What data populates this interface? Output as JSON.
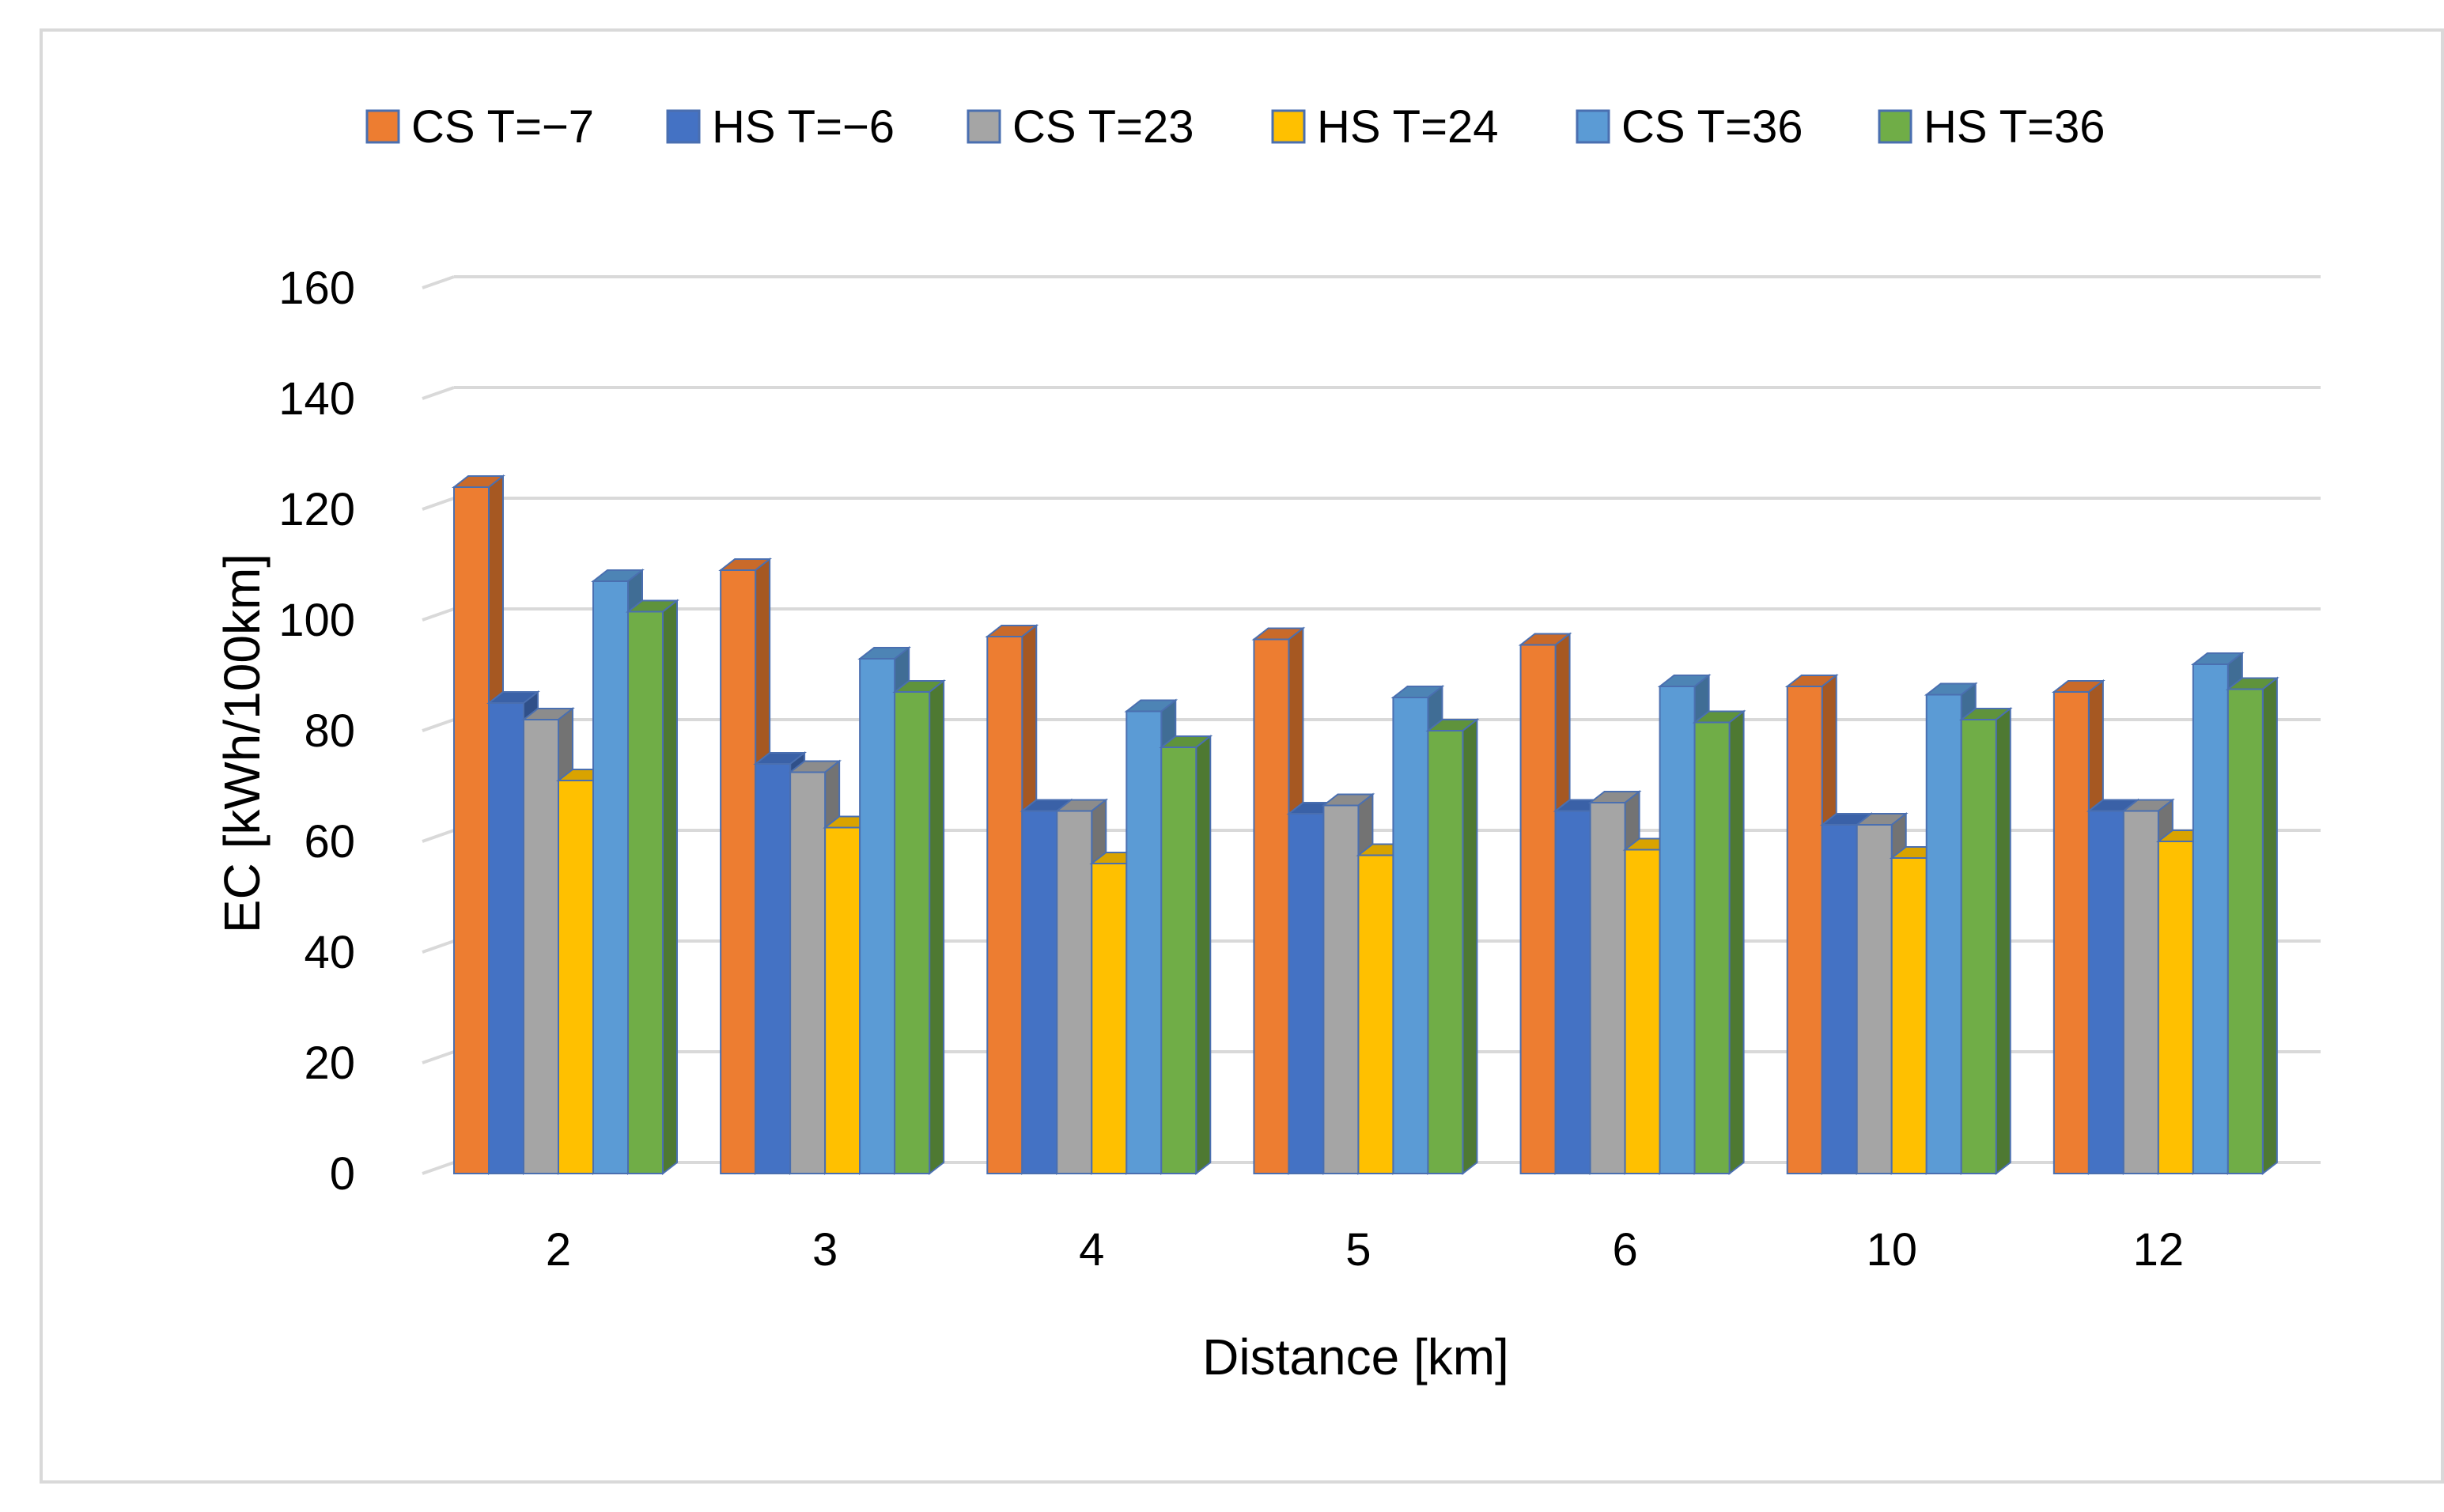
{
  "chart_data": {
    "type": "bar",
    "title": "",
    "xlabel": "Distance [km]",
    "ylabel": "EC [kWh/100km]",
    "ylim": [
      0,
      160
    ],
    "yticks": [
      "0",
      "20",
      "40",
      "60",
      "80",
      "100",
      "120",
      "140",
      "160"
    ],
    "categories": [
      "2",
      "3",
      "4",
      "5",
      "6",
      "10",
      "12"
    ],
    "grid": true,
    "legend_position": "top",
    "series": [
      {
        "name": "CS T=−7",
        "color": "#ED7D31",
        "values": [
          124,
          109,
          97,
          96.5,
          95.5,
          88,
          87
        ]
      },
      {
        "name": "HS T=−6",
        "color": "#4472C4",
        "values": [
          85,
          74,
          65.5,
          65,
          65.5,
          63,
          65.5
        ]
      },
      {
        "name": "CS T=23",
        "color": "#A5A5A5",
        "values": [
          82,
          72.5,
          65.5,
          66.5,
          67,
          63,
          65.5
        ]
      },
      {
        "name": "HS T=24",
        "color": "#FFC000",
        "values": [
          71,
          62.5,
          56,
          57.5,
          58.5,
          57,
          60
        ]
      },
      {
        "name": "CS T=36",
        "color": "#5B9BD5",
        "values": [
          107,
          93,
          83.5,
          86,
          88,
          86.5,
          92
        ]
      },
      {
        "name": "HS T=36",
        "color": "#70AD47",
        "values": [
          101.5,
          87,
          77,
          80,
          81.5,
          82,
          87.5
        ]
      }
    ]
  }
}
